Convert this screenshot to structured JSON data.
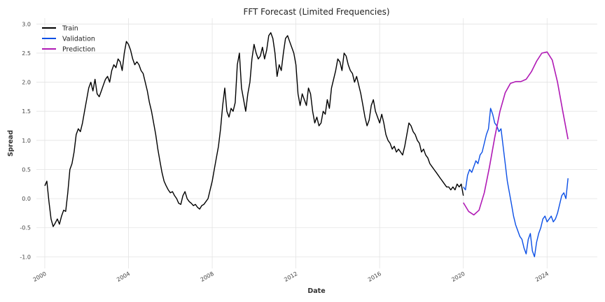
{
  "chart_data": {
    "type": "line",
    "title": "FFT Forecast (Limited Frequencies)",
    "xlabel": "Date",
    "ylabel": "Spread",
    "xlim": [
      1999.6,
      2026.4
    ],
    "ylim": [
      -1.2,
      3.1
    ],
    "x_ticks": [
      2000,
      2004,
      2008,
      2012,
      2016,
      2020,
      2024
    ],
    "y_ticks": [
      -1.0,
      -0.5,
      0.0,
      0.5,
      1.0,
      1.5,
      2.0,
      2.5,
      3.0
    ],
    "grid": true,
    "legend_position": "top-left",
    "series": [
      {
        "name": "Train",
        "color": "#000000",
        "points": [
          [
            2000.0,
            0.22
          ],
          [
            2000.1,
            0.3
          ],
          [
            2000.2,
            -0.05
          ],
          [
            2000.3,
            -0.35
          ],
          [
            2000.4,
            -0.48
          ],
          [
            2000.5,
            -0.42
          ],
          [
            2000.6,
            -0.35
          ],
          [
            2000.7,
            -0.44
          ],
          [
            2000.8,
            -0.3
          ],
          [
            2000.9,
            -0.2
          ],
          [
            2001.0,
            -0.22
          ],
          [
            2001.1,
            0.1
          ],
          [
            2001.2,
            0.5
          ],
          [
            2001.3,
            0.6
          ],
          [
            2001.4,
            0.8
          ],
          [
            2001.5,
            1.1
          ],
          [
            2001.6,
            1.2
          ],
          [
            2001.7,
            1.15
          ],
          [
            2001.8,
            1.3
          ],
          [
            2001.9,
            1.5
          ],
          [
            2002.0,
            1.7
          ],
          [
            2002.1,
            1.9
          ],
          [
            2002.2,
            2.0
          ],
          [
            2002.3,
            1.85
          ],
          [
            2002.4,
            2.05
          ],
          [
            2002.5,
            1.8
          ],
          [
            2002.6,
            1.75
          ],
          [
            2002.7,
            1.85
          ],
          [
            2002.8,
            1.95
          ],
          [
            2002.9,
            2.05
          ],
          [
            2003.0,
            2.1
          ],
          [
            2003.1,
            2.0
          ],
          [
            2003.2,
            2.2
          ],
          [
            2003.3,
            2.3
          ],
          [
            2003.4,
            2.25
          ],
          [
            2003.5,
            2.4
          ],
          [
            2003.6,
            2.35
          ],
          [
            2003.7,
            2.2
          ],
          [
            2003.8,
            2.5
          ],
          [
            2003.9,
            2.7
          ],
          [
            2004.0,
            2.65
          ],
          [
            2004.1,
            2.55
          ],
          [
            2004.2,
            2.4
          ],
          [
            2004.3,
            2.3
          ],
          [
            2004.4,
            2.35
          ],
          [
            2004.5,
            2.3
          ],
          [
            2004.6,
            2.2
          ],
          [
            2004.7,
            2.15
          ],
          [
            2004.8,
            2.0
          ],
          [
            2004.9,
            1.85
          ],
          [
            2005.0,
            1.65
          ],
          [
            2005.1,
            1.5
          ],
          [
            2005.2,
            1.3
          ],
          [
            2005.3,
            1.1
          ],
          [
            2005.4,
            0.85
          ],
          [
            2005.5,
            0.65
          ],
          [
            2005.6,
            0.45
          ],
          [
            2005.7,
            0.3
          ],
          [
            2005.8,
            0.22
          ],
          [
            2005.9,
            0.15
          ],
          [
            2006.0,
            0.1
          ],
          [
            2006.1,
            0.12
          ],
          [
            2006.2,
            0.05
          ],
          [
            2006.3,
            0.0
          ],
          [
            2006.4,
            -0.08
          ],
          [
            2006.5,
            -0.1
          ],
          [
            2006.6,
            0.05
          ],
          [
            2006.7,
            0.12
          ],
          [
            2006.8,
            0.0
          ],
          [
            2006.9,
            -0.05
          ],
          [
            2007.0,
            -0.08
          ],
          [
            2007.1,
            -0.12
          ],
          [
            2007.2,
            -0.1
          ],
          [
            2007.3,
            -0.15
          ],
          [
            2007.4,
            -0.18
          ],
          [
            2007.5,
            -0.12
          ],
          [
            2007.6,
            -0.1
          ],
          [
            2007.7,
            -0.05
          ],
          [
            2007.8,
            0.0
          ],
          [
            2007.9,
            0.15
          ],
          [
            2008.0,
            0.3
          ],
          [
            2008.1,
            0.5
          ],
          [
            2008.2,
            0.7
          ],
          [
            2008.3,
            0.9
          ],
          [
            2008.4,
            1.2
          ],
          [
            2008.5,
            1.6
          ],
          [
            2008.6,
            1.9
          ],
          [
            2008.7,
            1.5
          ],
          [
            2008.8,
            1.4
          ],
          [
            2008.9,
            1.55
          ],
          [
            2009.0,
            1.5
          ],
          [
            2009.1,
            1.65
          ],
          [
            2009.2,
            2.3
          ],
          [
            2009.3,
            2.5
          ],
          [
            2009.4,
            1.9
          ],
          [
            2009.5,
            1.7
          ],
          [
            2009.6,
            1.5
          ],
          [
            2009.7,
            1.8
          ],
          [
            2009.8,
            2.0
          ],
          [
            2009.9,
            2.4
          ],
          [
            2010.0,
            2.65
          ],
          [
            2010.1,
            2.5
          ],
          [
            2010.2,
            2.4
          ],
          [
            2010.3,
            2.45
          ],
          [
            2010.4,
            2.6
          ],
          [
            2010.5,
            2.4
          ],
          [
            2010.6,
            2.55
          ],
          [
            2010.7,
            2.8
          ],
          [
            2010.8,
            2.85
          ],
          [
            2010.9,
            2.75
          ],
          [
            2011.0,
            2.5
          ],
          [
            2011.1,
            2.1
          ],
          [
            2011.2,
            2.3
          ],
          [
            2011.3,
            2.2
          ],
          [
            2011.4,
            2.5
          ],
          [
            2011.5,
            2.75
          ],
          [
            2011.6,
            2.8
          ],
          [
            2011.7,
            2.7
          ],
          [
            2011.8,
            2.6
          ],
          [
            2011.9,
            2.5
          ],
          [
            2012.0,
            2.3
          ],
          [
            2012.1,
            1.8
          ],
          [
            2012.2,
            1.6
          ],
          [
            2012.3,
            1.8
          ],
          [
            2012.4,
            1.7
          ],
          [
            2012.5,
            1.6
          ],
          [
            2012.6,
            1.9
          ],
          [
            2012.7,
            1.8
          ],
          [
            2012.8,
            1.5
          ],
          [
            2012.9,
            1.3
          ],
          [
            2013.0,
            1.4
          ],
          [
            2013.1,
            1.25
          ],
          [
            2013.2,
            1.3
          ],
          [
            2013.3,
            1.5
          ],
          [
            2013.4,
            1.45
          ],
          [
            2013.5,
            1.7
          ],
          [
            2013.6,
            1.55
          ],
          [
            2013.7,
            1.9
          ],
          [
            2013.8,
            2.05
          ],
          [
            2013.9,
            2.2
          ],
          [
            2014.0,
            2.4
          ],
          [
            2014.1,
            2.35
          ],
          [
            2014.2,
            2.2
          ],
          [
            2014.3,
            2.5
          ],
          [
            2014.4,
            2.45
          ],
          [
            2014.5,
            2.3
          ],
          [
            2014.6,
            2.2
          ],
          [
            2014.7,
            2.15
          ],
          [
            2014.8,
            2.0
          ],
          [
            2014.9,
            2.1
          ],
          [
            2015.0,
            1.95
          ],
          [
            2015.1,
            1.8
          ],
          [
            2015.2,
            1.6
          ],
          [
            2015.3,
            1.4
          ],
          [
            2015.4,
            1.25
          ],
          [
            2015.5,
            1.35
          ],
          [
            2015.6,
            1.6
          ],
          [
            2015.7,
            1.7
          ],
          [
            2015.8,
            1.5
          ],
          [
            2015.9,
            1.4
          ],
          [
            2016.0,
            1.3
          ],
          [
            2016.1,
            1.45
          ],
          [
            2016.2,
            1.3
          ],
          [
            2016.3,
            1.1
          ],
          [
            2016.4,
            1.0
          ],
          [
            2016.5,
            0.95
          ],
          [
            2016.6,
            0.85
          ],
          [
            2016.7,
            0.9
          ],
          [
            2016.8,
            0.8
          ],
          [
            2016.9,
            0.85
          ],
          [
            2017.0,
            0.8
          ],
          [
            2017.1,
            0.75
          ],
          [
            2017.2,
            0.9
          ],
          [
            2017.3,
            1.1
          ],
          [
            2017.4,
            1.3
          ],
          [
            2017.5,
            1.25
          ],
          [
            2017.6,
            1.15
          ],
          [
            2017.7,
            1.1
          ],
          [
            2017.8,
            1.0
          ],
          [
            2017.9,
            0.95
          ],
          [
            2018.0,
            0.8
          ],
          [
            2018.1,
            0.85
          ],
          [
            2018.2,
            0.75
          ],
          [
            2018.3,
            0.7
          ],
          [
            2018.4,
            0.6
          ],
          [
            2018.5,
            0.55
          ],
          [
            2018.6,
            0.5
          ],
          [
            2018.7,
            0.45
          ],
          [
            2018.8,
            0.4
          ],
          [
            2018.9,
            0.35
          ],
          [
            2019.0,
            0.3
          ],
          [
            2019.1,
            0.25
          ],
          [
            2019.2,
            0.2
          ],
          [
            2019.3,
            0.2
          ],
          [
            2019.4,
            0.15
          ],
          [
            2019.5,
            0.2
          ],
          [
            2019.6,
            0.15
          ],
          [
            2019.7,
            0.25
          ],
          [
            2019.8,
            0.2
          ],
          [
            2019.9,
            0.25
          ],
          [
            2020.0,
            0.05
          ]
        ]
      },
      {
        "name": "Validation",
        "color": "#0b4fe6",
        "points": [
          [
            2020.0,
            0.2
          ],
          [
            2020.1,
            0.15
          ],
          [
            2020.2,
            0.4
          ],
          [
            2020.3,
            0.5
          ],
          [
            2020.4,
            0.45
          ],
          [
            2020.5,
            0.55
          ],
          [
            2020.6,
            0.65
          ],
          [
            2020.7,
            0.6
          ],
          [
            2020.8,
            0.75
          ],
          [
            2020.9,
            0.8
          ],
          [
            2021.0,
            0.95
          ],
          [
            2021.1,
            1.1
          ],
          [
            2021.2,
            1.2
          ],
          [
            2021.3,
            1.55
          ],
          [
            2021.4,
            1.45
          ],
          [
            2021.5,
            1.3
          ],
          [
            2021.6,
            1.25
          ],
          [
            2021.7,
            1.15
          ],
          [
            2021.8,
            1.2
          ],
          [
            2021.9,
            0.9
          ],
          [
            2022.0,
            0.6
          ],
          [
            2022.1,
            0.3
          ],
          [
            2022.2,
            0.1
          ],
          [
            2022.3,
            -0.1
          ],
          [
            2022.4,
            -0.3
          ],
          [
            2022.5,
            -0.45
          ],
          [
            2022.6,
            -0.55
          ],
          [
            2022.7,
            -0.65
          ],
          [
            2022.8,
            -0.7
          ],
          [
            2022.9,
            -0.85
          ],
          [
            2023.0,
            -0.95
          ],
          [
            2023.1,
            -0.7
          ],
          [
            2023.2,
            -0.6
          ],
          [
            2023.3,
            -0.9
          ],
          [
            2023.4,
            -1.0
          ],
          [
            2023.5,
            -0.75
          ],
          [
            2023.6,
            -0.6
          ],
          [
            2023.7,
            -0.5
          ],
          [
            2023.8,
            -0.35
          ],
          [
            2023.9,
            -0.3
          ],
          [
            2024.0,
            -0.4
          ],
          [
            2024.1,
            -0.35
          ],
          [
            2024.2,
            -0.3
          ],
          [
            2024.3,
            -0.4
          ],
          [
            2024.4,
            -0.35
          ],
          [
            2024.5,
            -0.25
          ],
          [
            2024.6,
            -0.1
          ],
          [
            2024.7,
            0.05
          ],
          [
            2024.8,
            0.1
          ],
          [
            2024.9,
            0.0
          ],
          [
            2025.0,
            0.35
          ]
        ]
      },
      {
        "name": "Prediction",
        "color": "#b01ab5",
        "points": [
          [
            2020.0,
            -0.07
          ],
          [
            2020.25,
            -0.22
          ],
          [
            2020.5,
            -0.28
          ],
          [
            2020.75,
            -0.2
          ],
          [
            2021.0,
            0.1
          ],
          [
            2021.25,
            0.55
          ],
          [
            2021.5,
            1.05
          ],
          [
            2021.75,
            1.5
          ],
          [
            2022.0,
            1.82
          ],
          [
            2022.25,
            1.98
          ],
          [
            2022.5,
            2.01
          ],
          [
            2022.75,
            2.01
          ],
          [
            2023.0,
            2.05
          ],
          [
            2023.25,
            2.18
          ],
          [
            2023.5,
            2.36
          ],
          [
            2023.75,
            2.5
          ],
          [
            2024.0,
            2.52
          ],
          [
            2024.25,
            2.38
          ],
          [
            2024.5,
            2.0
          ],
          [
            2024.75,
            1.5
          ],
          [
            2025.0,
            1.02
          ]
        ]
      }
    ]
  }
}
